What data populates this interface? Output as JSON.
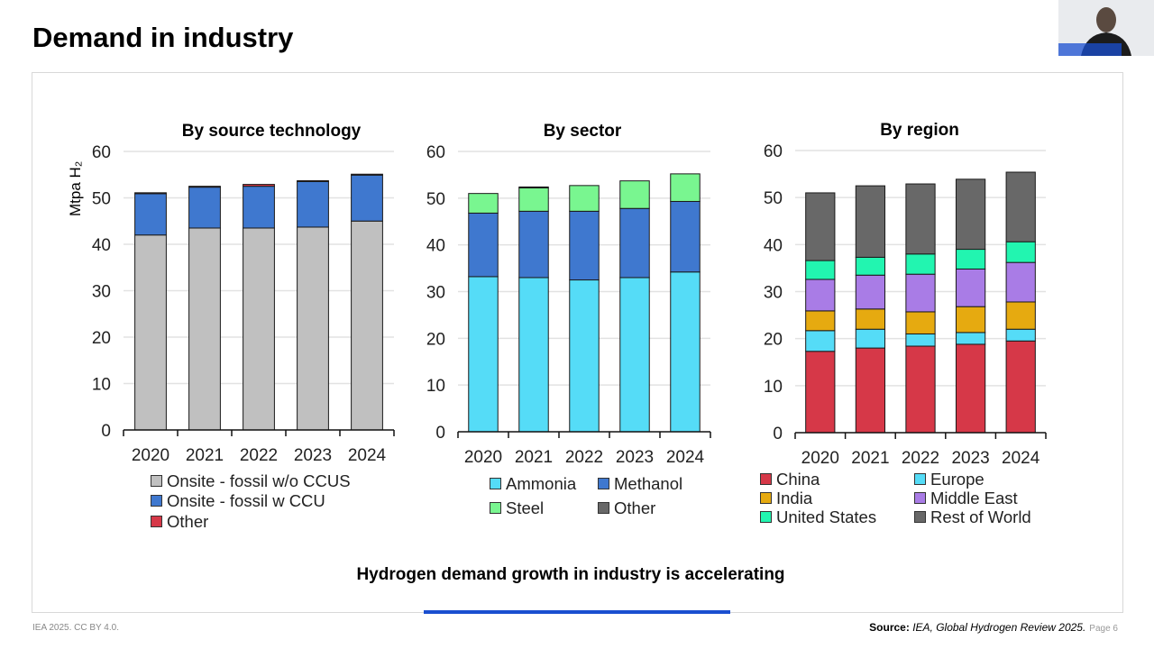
{
  "slide": {
    "title": "Demand in industry",
    "caption": "Hydrogen demand growth in industry is accelerating",
    "copyright": "IEA 2025. CC BY 4.0.",
    "source_label": "Source:",
    "source_text": "IEA, Global Hydrogen Review 2025.",
    "page": "Page 6",
    "accent_color": "#1a4fd0"
  },
  "chart_data": [
    {
      "type": "bar",
      "stacked": true,
      "title": "By source technology",
      "ylabel": "Mtpa H₂",
      "ylim": [
        0,
        60
      ],
      "yticks": [
        0,
        10,
        20,
        30,
        40,
        50,
        60
      ],
      "grid": true,
      "legend_placement": "bottom",
      "categories": [
        "2020",
        "2021",
        "2022",
        "2023",
        "2024"
      ],
      "series": [
        {
          "name": "Onsite - fossil w/o CCUS",
          "color": "#c0c0c0",
          "values": [
            42.0,
            43.5,
            43.5,
            43.7,
            45.0
          ]
        },
        {
          "name": "Onsite - fossil w CCU",
          "color": "#3f78cf",
          "values": [
            8.9,
            8.8,
            9.0,
            9.8,
            9.9
          ]
        },
        {
          "name": "Other",
          "color": "#d63848",
          "values": [
            0.2,
            0.2,
            0.4,
            0.2,
            0.2
          ]
        }
      ]
    },
    {
      "type": "bar",
      "stacked": true,
      "title": "By sector",
      "ylim": [
        0,
        60
      ],
      "yticks": [
        0,
        10,
        20,
        30,
        40,
        50,
        60
      ],
      "grid": true,
      "legend_placement": "bottom",
      "categories": [
        "2020",
        "2021",
        "2022",
        "2023",
        "2024"
      ],
      "series": [
        {
          "name": "Ammonia",
          "color": "#55dcf7",
          "values": [
            33.2,
            33.0,
            32.5,
            33.0,
            34.2
          ]
        },
        {
          "name": "Methanol",
          "color": "#3f78cf",
          "values": [
            13.6,
            14.2,
            14.7,
            14.8,
            15.1
          ]
        },
        {
          "name": "Steel",
          "color": "#79f690",
          "values": [
            4.2,
            5.0,
            5.5,
            5.9,
            5.9
          ]
        },
        {
          "name": "Other",
          "color": "#686868",
          "values": [
            0.0,
            0.2,
            0.0,
            0.0,
            0.0
          ]
        }
      ]
    },
    {
      "type": "bar",
      "stacked": true,
      "title": "By region",
      "ylim": [
        0,
        60
      ],
      "yticks": [
        0,
        10,
        20,
        30,
        40,
        50,
        60
      ],
      "grid": true,
      "legend_placement": "bottom",
      "categories": [
        "2020",
        "2021",
        "2022",
        "2023",
        "2024"
      ],
      "series": [
        {
          "name": "China",
          "color": "#d63848",
          "values": [
            17.3,
            18.0,
            18.4,
            18.8,
            19.5
          ]
        },
        {
          "name": "Europe",
          "color": "#55dcf7",
          "values": [
            4.4,
            4.0,
            2.6,
            2.5,
            2.5
          ]
        },
        {
          "name": "India",
          "color": "#e6aa10",
          "values": [
            4.2,
            4.3,
            4.7,
            5.5,
            5.8
          ]
        },
        {
          "name": "Middle East",
          "color": "#a97ce6",
          "values": [
            6.7,
            7.2,
            8.0,
            8.0,
            8.4
          ]
        },
        {
          "name": "United States",
          "color": "#22f5b0",
          "values": [
            4.0,
            3.8,
            4.3,
            4.2,
            4.4
          ]
        },
        {
          "name": "Rest of World",
          "color": "#686868",
          "values": [
            14.4,
            15.2,
            14.9,
            14.9,
            14.8
          ]
        }
      ]
    }
  ]
}
